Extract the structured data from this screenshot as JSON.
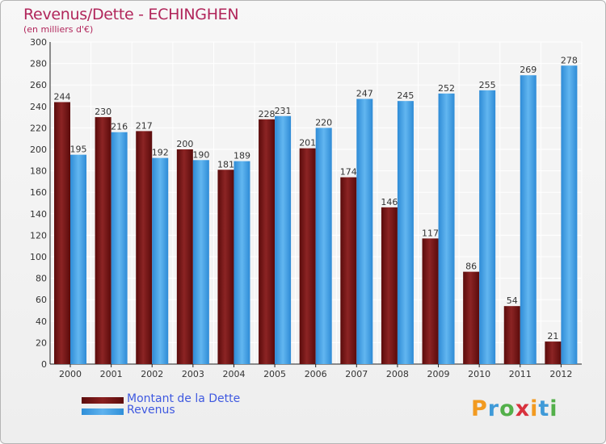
{
  "chart_data": {
    "type": "bar",
    "title": "Revenus/Dette - ECHINGHEN",
    "subtitle": "(en milliers d'€)",
    "categories": [
      "2000",
      "2001",
      "2002",
      "2003",
      "2004",
      "2005",
      "2006",
      "2007",
      "2008",
      "2009",
      "2010",
      "2011",
      "2012"
    ],
    "series": [
      {
        "name": "Montant de la Dette",
        "color": "#7a1818",
        "values": [
          244,
          230,
          217,
          200,
          181,
          228,
          201,
          174,
          146,
          117,
          86,
          54,
          21
        ]
      },
      {
        "name": "Revenus",
        "color": "#4aa3e6",
        "values": [
          195,
          216,
          192,
          190,
          189,
          231,
          220,
          247,
          245,
          252,
          255,
          269,
          278
        ]
      }
    ],
    "ylim": [
      0,
      300
    ],
    "yticks": [
      0,
      20,
      40,
      60,
      80,
      100,
      120,
      140,
      160,
      180,
      200,
      220,
      240,
      260,
      280,
      300
    ],
    "grid": true,
    "legend_position": "bottom-left"
  },
  "brand": {
    "logo_letters": [
      "P",
      "r",
      "o",
      "x",
      "i",
      "t",
      "i"
    ]
  }
}
